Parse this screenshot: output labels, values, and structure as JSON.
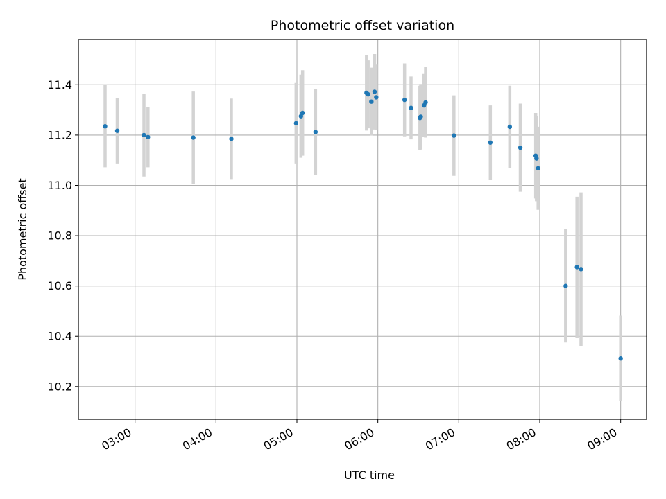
{
  "chart_data": {
    "type": "scatter",
    "title": "Photometric offset variation",
    "xlabel": "UTC time",
    "ylabel": "Photometric offset",
    "x_ticks": [
      "03:00",
      "04:00",
      "05:00",
      "06:00",
      "07:00",
      "08:00",
      "09:00"
    ],
    "x_tick_hours": [
      3,
      4,
      5,
      6,
      7,
      8,
      9
    ],
    "xlim_hours": [
      2.3,
      9.32
    ],
    "ylim": [
      10.07,
      11.58
    ],
    "y_ticks": [
      "10.2",
      "10.4",
      "10.6",
      "10.8",
      "11.0",
      "11.2",
      "11.4"
    ],
    "y_tick_values": [
      10.2,
      10.4,
      10.6,
      10.8,
      11.0,
      11.2,
      11.4
    ],
    "grid": true,
    "colors": {
      "point": "#1f77b4",
      "errorbar": "#d3d3d3",
      "grid": "#b0b0b0"
    },
    "series": [
      {
        "points": [
          {
            "t": 2.63,
            "y": 11.235,
            "err": 0.163
          },
          {
            "t": 2.78,
            "y": 11.217,
            "err": 0.13
          },
          {
            "t": 3.11,
            "y": 11.2,
            "err": 0.165
          },
          {
            "t": 3.16,
            "y": 11.192,
            "err": 0.12
          },
          {
            "t": 3.72,
            "y": 11.19,
            "err": 0.183
          },
          {
            "t": 4.19,
            "y": 11.185,
            "err": 0.16
          },
          {
            "t": 4.99,
            "y": 11.247,
            "err": 0.16
          },
          {
            "t": 5.05,
            "y": 11.275,
            "err": 0.165
          },
          {
            "t": 5.07,
            "y": 11.288,
            "err": 0.17
          },
          {
            "t": 5.23,
            "y": 11.212,
            "err": 0.17
          },
          {
            "t": 5.86,
            "y": 11.368,
            "err": 0.15
          },
          {
            "t": 5.88,
            "y": 11.362,
            "err": 0.135
          },
          {
            "t": 5.92,
            "y": 11.333,
            "err": 0.135
          },
          {
            "t": 5.96,
            "y": 11.372,
            "err": 0.15
          },
          {
            "t": 5.98,
            "y": 11.35,
            "err": 0.13
          },
          {
            "t": 6.33,
            "y": 11.34,
            "err": 0.145
          },
          {
            "t": 6.41,
            "y": 11.308,
            "err": 0.125
          },
          {
            "t": 6.52,
            "y": 11.268,
            "err": 0.128
          },
          {
            "t": 6.53,
            "y": 11.273,
            "err": 0.13
          },
          {
            "t": 6.57,
            "y": 11.318,
            "err": 0.125
          },
          {
            "t": 6.59,
            "y": 11.33,
            "err": 0.14
          },
          {
            "t": 6.94,
            "y": 11.198,
            "err": 0.16
          },
          {
            "t": 7.39,
            "y": 11.17,
            "err": 0.148
          },
          {
            "t": 7.63,
            "y": 11.233,
            "err": 0.163
          },
          {
            "t": 7.76,
            "y": 11.15,
            "err": 0.175
          },
          {
            "t": 7.95,
            "y": 11.118,
            "err": 0.17
          },
          {
            "t": 7.96,
            "y": 11.107,
            "err": 0.17
          },
          {
            "t": 7.98,
            "y": 11.068,
            "err": 0.165
          },
          {
            "t": 8.32,
            "y": 10.6,
            "err": 0.225
          },
          {
            "t": 8.46,
            "y": 10.675,
            "err": 0.28
          },
          {
            "t": 8.51,
            "y": 10.667,
            "err": 0.305
          },
          {
            "t": 9.0,
            "y": 10.312,
            "err": 0.17
          }
        ]
      }
    ]
  }
}
